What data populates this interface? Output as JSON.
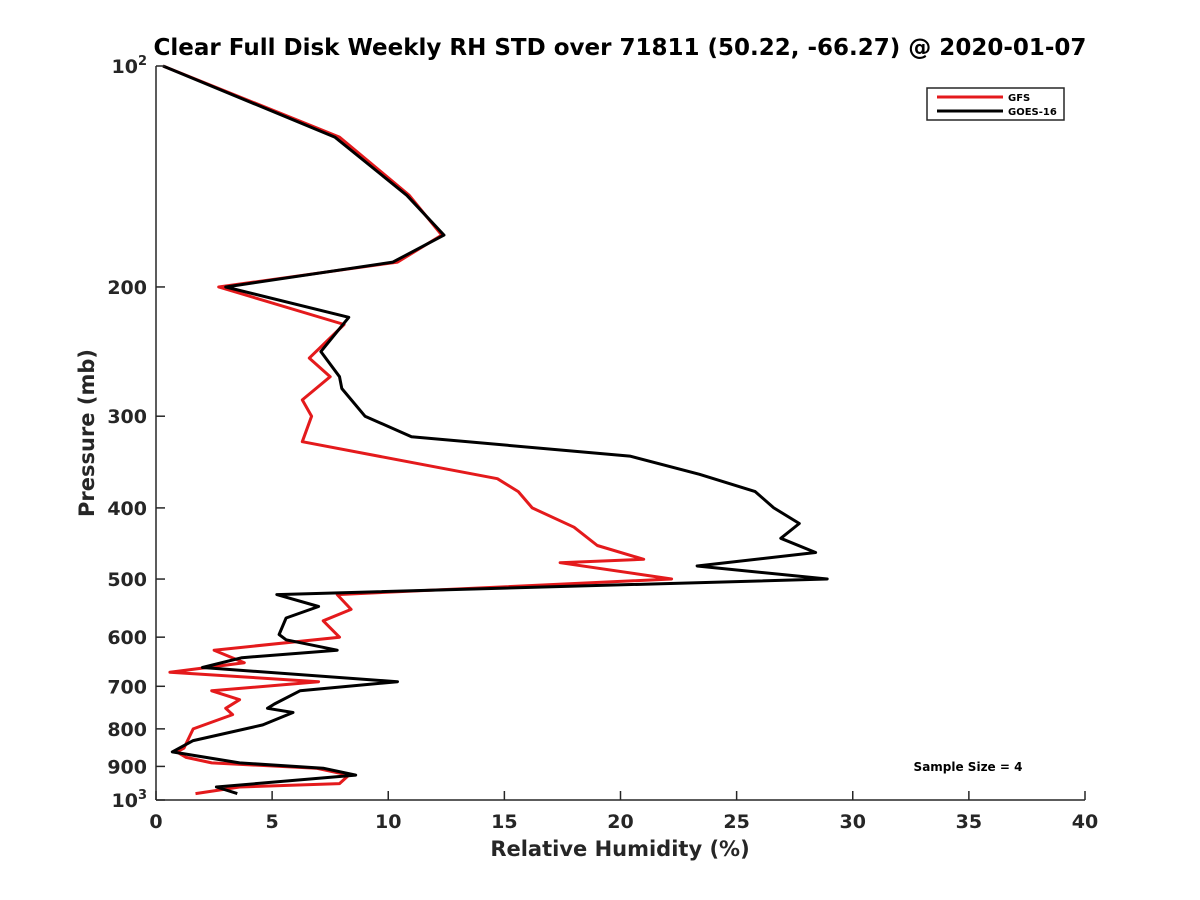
{
  "chart_data": {
    "type": "line",
    "title": "Clear Full Disk Weekly RH STD over 71811 (50.22, -66.27) @ 2020-01-07",
    "xlabel": "Relative Humidity (%)",
    "ylabel": "Pressure (mb)",
    "xlim": [
      0,
      40
    ],
    "ylim": [
      100,
      1000
    ],
    "yscale": "log",
    "y_reversed": true,
    "grid": false,
    "legend_position": "top-right",
    "x_ticks": [
      0,
      5,
      10,
      15,
      20,
      25,
      30,
      35,
      40
    ],
    "y_ticks": [
      {
        "value": 100,
        "base": "10",
        "exp": "2"
      },
      {
        "value": 200,
        "label": "200"
      },
      {
        "value": 300,
        "label": "300"
      },
      {
        "value": 400,
        "label": "400"
      },
      {
        "value": 500,
        "label": "500"
      },
      {
        "value": 600,
        "label": "600"
      },
      {
        "value": 700,
        "label": "700"
      },
      {
        "value": 800,
        "label": "800"
      },
      {
        "value": 900,
        "label": "900"
      },
      {
        "value": 1000,
        "base": "10",
        "exp": "3"
      }
    ],
    "annotation": "Sample Size = 4",
    "series": [
      {
        "name": "GFS",
        "color": "#e41a1c",
        "points": [
          [
            0.3,
            100
          ],
          [
            7.9,
            125
          ],
          [
            10.9,
            150
          ],
          [
            12.3,
            170
          ],
          [
            10.4,
            185
          ],
          [
            2.7,
            200
          ],
          [
            8.1,
            225
          ],
          [
            6.6,
            250
          ],
          [
            7.5,
            265
          ],
          [
            6.3,
            285
          ],
          [
            6.7,
            300
          ],
          [
            6.3,
            325
          ],
          [
            14.7,
            365
          ],
          [
            15.6,
            380
          ],
          [
            16.2,
            400
          ],
          [
            18.0,
            425
          ],
          [
            19.0,
            450
          ],
          [
            21.0,
            470
          ],
          [
            17.4,
            475
          ],
          [
            22.2,
            500
          ],
          [
            7.8,
            525
          ],
          [
            8.4,
            550
          ],
          [
            7.2,
            570
          ],
          [
            7.9,
            600
          ],
          [
            2.5,
            625
          ],
          [
            3.8,
            650
          ],
          [
            0.6,
            670
          ],
          [
            7.0,
            690
          ],
          [
            2.4,
            710
          ],
          [
            3.6,
            730
          ],
          [
            3.0,
            750
          ],
          [
            3.3,
            765
          ],
          [
            1.6,
            800
          ],
          [
            1.2,
            850
          ],
          [
            0.9,
            860
          ],
          [
            1.3,
            875
          ],
          [
            2.4,
            890
          ],
          [
            6.9,
            905
          ],
          [
            8.3,
            925
          ],
          [
            7.9,
            950
          ],
          [
            3.6,
            960
          ],
          [
            1.7,
            980
          ]
        ]
      },
      {
        "name": "GOES-16",
        "color": "#000000",
        "points": [
          [
            0.3,
            100
          ],
          [
            7.7,
            125
          ],
          [
            10.8,
            150
          ],
          [
            12.4,
            170
          ],
          [
            10.2,
            185
          ],
          [
            3.0,
            200
          ],
          [
            8.3,
            220
          ],
          [
            7.1,
            245
          ],
          [
            7.9,
            265
          ],
          [
            8.0,
            275
          ],
          [
            9.0,
            300
          ],
          [
            11.0,
            320
          ],
          [
            20.4,
            340
          ],
          [
            23.4,
            360
          ],
          [
            25.8,
            380
          ],
          [
            26.6,
            400
          ],
          [
            27.7,
            420
          ],
          [
            26.9,
            440
          ],
          [
            28.4,
            460
          ],
          [
            23.3,
            480
          ],
          [
            28.9,
            500
          ],
          [
            5.2,
            525
          ],
          [
            7.0,
            545
          ],
          [
            5.6,
            565
          ],
          [
            5.3,
            595
          ],
          [
            5.6,
            605
          ],
          [
            7.8,
            625
          ],
          [
            3.7,
            640
          ],
          [
            2.0,
            660
          ],
          [
            10.4,
            690
          ],
          [
            6.2,
            710
          ],
          [
            5.1,
            740
          ],
          [
            4.8,
            750
          ],
          [
            5.9,
            760
          ],
          [
            4.6,
            790
          ],
          [
            1.6,
            830
          ],
          [
            0.7,
            860
          ],
          [
            3.6,
            890
          ],
          [
            7.2,
            905
          ],
          [
            8.6,
            925
          ],
          [
            2.6,
            960
          ],
          [
            3.5,
            980
          ]
        ]
      }
    ]
  }
}
